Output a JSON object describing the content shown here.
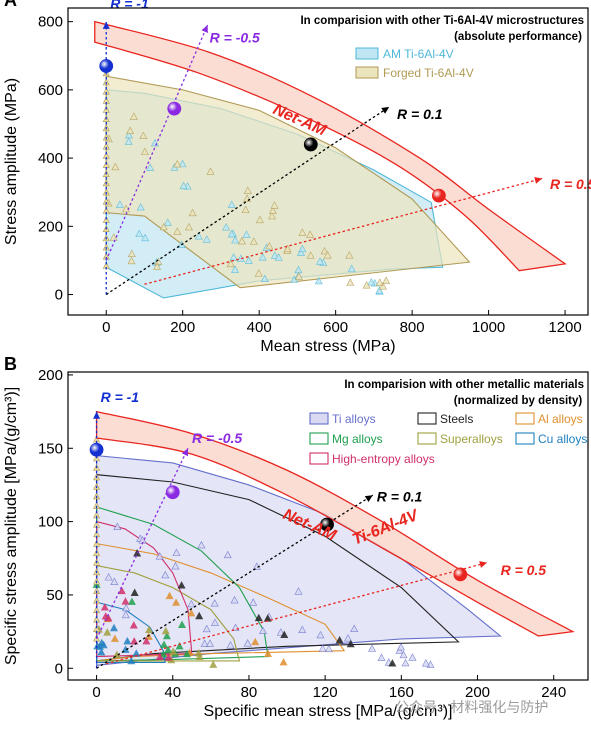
{
  "watermark": "公众号 · 材料强化与防护",
  "chart_data": [
    {
      "type": "scatter",
      "panel_label": "A",
      "xlabel": "Mean stress (MPa)",
      "ylabel": "Stress amplitude (MPa)",
      "xlim": [
        -100,
        1260
      ],
      "ylim": [
        -60,
        840
      ],
      "xticks": [
        0,
        200,
        400,
        600,
        800,
        1000,
        1200
      ],
      "yticks": [
        0,
        200,
        400,
        600,
        800
      ],
      "legend_title_1": "In comparision with other Ti-6Al-4V microstructures",
      "legend_title_2": "(absolute performance)",
      "legend_position": "top-right",
      "band_label": "Net-AM",
      "series": [
        {
          "name": "AM Ti-6Al-4V",
          "color": "#4fb8d8",
          "fill": "#bfe6f2",
          "region": [
            [
              0,
              80
            ],
            [
              0,
              600
            ],
            [
              100,
              590
            ],
            [
              300,
              545
            ],
            [
              500,
              470
            ],
            [
              700,
              365
            ],
            [
              850,
              270
            ],
            [
              880,
              80
            ],
            [
              750,
              75
            ],
            [
              400,
              40
            ],
            [
              150,
              -10
            ]
          ]
        },
        {
          "name": "Forged Ti-6Al-4V",
          "color": "#b09a55",
          "fill": "#ece4bd",
          "region": [
            [
              0,
              240
            ],
            [
              0,
              640
            ],
            [
              200,
              600
            ],
            [
              400,
              540
            ],
            [
              600,
              430
            ],
            [
              800,
              280
            ],
            [
              950,
              95
            ],
            [
              350,
              20
            ],
            [
              100,
              230
            ]
          ]
        }
      ],
      "net_am_band": {
        "color": "#e8251f",
        "fill": "#fad2c4",
        "upper": [
          [
            -30,
            800
          ],
          [
            270,
            710
          ],
          [
            540,
            580
          ],
          [
            820,
            400
          ],
          [
            1000,
            250
          ],
          [
            1200,
            90
          ]
        ],
        "lower": [
          [
            -30,
            740
          ],
          [
            240,
            650
          ],
          [
            520,
            520
          ],
          [
            760,
            380
          ],
          [
            940,
            230
          ],
          [
            1080,
            70
          ]
        ]
      },
      "net_am_points": [
        {
          "R": "R = -1",
          "x": 0,
          "y": 670,
          "color": "#1530d0"
        },
        {
          "R": "R = -0.5",
          "x": 178,
          "y": 545,
          "color": "#8a2be2"
        },
        {
          "R": "R = 0.1",
          "x": 535,
          "y": 440,
          "color": "#000000"
        },
        {
          "R": "R = 0.5",
          "x": 870,
          "y": 290,
          "color": "#e8251f"
        }
      ],
      "r_lines": [
        {
          "label": "R = -1",
          "color": "#1530d0",
          "from": [
            0,
            0
          ],
          "to": [
            0,
            800
          ],
          "label_at": [
            0,
            845
          ]
        },
        {
          "label": "R = -0.5",
          "color": "#8a2be2",
          "from": [
            0,
            100
          ],
          "to": [
            265,
            790
          ],
          "label_at": [
            260,
            745
          ]
        },
        {
          "label": "R = 0.1",
          "color": "#000000",
          "from": [
            0,
            0
          ],
          "to": [
            740,
            550
          ],
          "label_at": [
            750,
            520
          ]
        },
        {
          "label": "R = 0.5",
          "color": "#e8251f",
          "from": [
            100,
            30
          ],
          "to": [
            1140,
            340
          ],
          "label_at": [
            1150,
            315
          ]
        }
      ]
    },
    {
      "type": "scatter",
      "panel_label": "B",
      "xlabel": "Specific mean stress [MPa/(g/cm³)]",
      "ylabel": "Specific stress amplitude [MPa/(g/cm³)]",
      "xlim": [
        -15,
        258
      ],
      "ylim": [
        -8,
        202
      ],
      "xticks": [
        0,
        40,
        80,
        120,
        160,
        200,
        240
      ],
      "yticks": [
        0,
        50,
        100,
        150,
        200
      ],
      "legend_title_1": "In comparision with other metallic materials",
      "legend_title_2": "(normalized by density)",
      "legend_position": "top-right",
      "band_label_1": "Net-AM",
      "band_label_2": "Ti-6Al-4V",
      "series": [
        {
          "name": "Ti alloys",
          "color": "#6670cc",
          "fill": "#d9daf2",
          "region": [
            [
              0,
              2
            ],
            [
              0,
              145
            ],
            [
              40,
              140
            ],
            [
              80,
              125
            ],
            [
              120,
              105
            ],
            [
              160,
              75
            ],
            [
              195,
              40
            ],
            [
              212,
              22
            ],
            [
              160,
              20
            ],
            [
              60,
              10
            ]
          ]
        },
        {
          "name": "Steels",
          "color": "#222222",
          "fill": "none",
          "region": [
            [
              0,
              5
            ],
            [
              0,
              132
            ],
            [
              40,
              127
            ],
            [
              80,
              115
            ],
            [
              120,
              90
            ],
            [
              160,
              55
            ],
            [
              190,
              18
            ],
            [
              100,
              15
            ],
            [
              30,
              10
            ]
          ]
        },
        {
          "name": "Al alloys",
          "color": "#e09030",
          "fill": "none",
          "region": [
            [
              0,
              5
            ],
            [
              0,
              85
            ],
            [
              30,
              78
            ],
            [
              60,
              65
            ],
            [
              90,
              48
            ],
            [
              120,
              30
            ],
            [
              130,
              12
            ],
            [
              60,
              10
            ],
            [
              20,
              8
            ]
          ]
        },
        {
          "name": "Mg alloys",
          "color": "#20a050",
          "fill": "none",
          "region": [
            [
              0,
              5
            ],
            [
              0,
              110
            ],
            [
              30,
              98
            ],
            [
              55,
              80
            ],
            [
              75,
              55
            ],
            [
              88,
              25
            ],
            [
              90,
              8
            ],
            [
              40,
              6
            ]
          ]
        },
        {
          "name": "Superalloys",
          "color": "#a0a040",
          "fill": "none",
          "region": [
            [
              0,
              5
            ],
            [
              0,
              70
            ],
            [
              20,
              65
            ],
            [
              40,
              55
            ],
            [
              60,
              40
            ],
            [
              72,
              20
            ],
            [
              75,
              5
            ]
          ]
        },
        {
          "name": "Cu alloys",
          "color": "#2080c0",
          "fill": "none",
          "region": [
            [
              0,
              4
            ],
            [
              0,
              45
            ],
            [
              15,
              40
            ],
            [
              28,
              28
            ],
            [
              35,
              12
            ],
            [
              36,
              4
            ]
          ]
        },
        {
          "name": "High-entropy alloys",
          "color": "#d0306a",
          "fill": "none",
          "region": [
            [
              0,
              8
            ],
            [
              0,
              100
            ],
            [
              15,
              95
            ],
            [
              30,
              82
            ],
            [
              40,
              65
            ],
            [
              48,
              40
            ],
            [
              50,
              10
            ]
          ]
        }
      ],
      "net_am_band": {
        "color": "#e8251f",
        "fill": "#fad2c4",
        "upper": [
          [
            0,
            175
          ],
          [
            50,
            160
          ],
          [
            100,
            135
          ],
          [
            150,
            100
          ],
          [
            200,
            60
          ],
          [
            250,
            25
          ]
        ],
        "lower": [
          [
            0,
            157
          ],
          [
            50,
            146
          ],
          [
            100,
            118
          ],
          [
            150,
            82
          ],
          [
            200,
            45
          ],
          [
            232,
            22
          ]
        ]
      },
      "net_am_points": [
        {
          "R": "R = -1",
          "x": 0,
          "y": 149,
          "color": "#1530d0"
        },
        {
          "R": "R = -0.5",
          "x": 40,
          "y": 120,
          "color": "#8a2be2"
        },
        {
          "R": "R = 0.1",
          "x": 121,
          "y": 98,
          "color": "#000000"
        },
        {
          "R": "R = 0.5",
          "x": 191,
          "y": 64,
          "color": "#e8251f"
        }
      ],
      "r_lines": [
        {
          "label": "R = -1",
          "color": "#1530d0",
          "from": [
            0,
            0
          ],
          "to": [
            0,
            175
          ],
          "label_at": [
            0,
            183
          ]
        },
        {
          "label": "R = -0.5",
          "color": "#8a2be2",
          "from": [
            0,
            20
          ],
          "to": [
            48,
            150
          ],
          "label_at": [
            48,
            155
          ]
        },
        {
          "label": "R = 0.1",
          "color": "#000000",
          "from": [
            0,
            0
          ],
          "to": [
            145,
            118
          ],
          "label_at": [
            145,
            115
          ]
        },
        {
          "label": "R = 0.5",
          "color": "#e8251f",
          "from": [
            5,
            3
          ],
          "to": [
            205,
            72
          ],
          "label_at": [
            210,
            65
          ]
        }
      ]
    }
  ]
}
